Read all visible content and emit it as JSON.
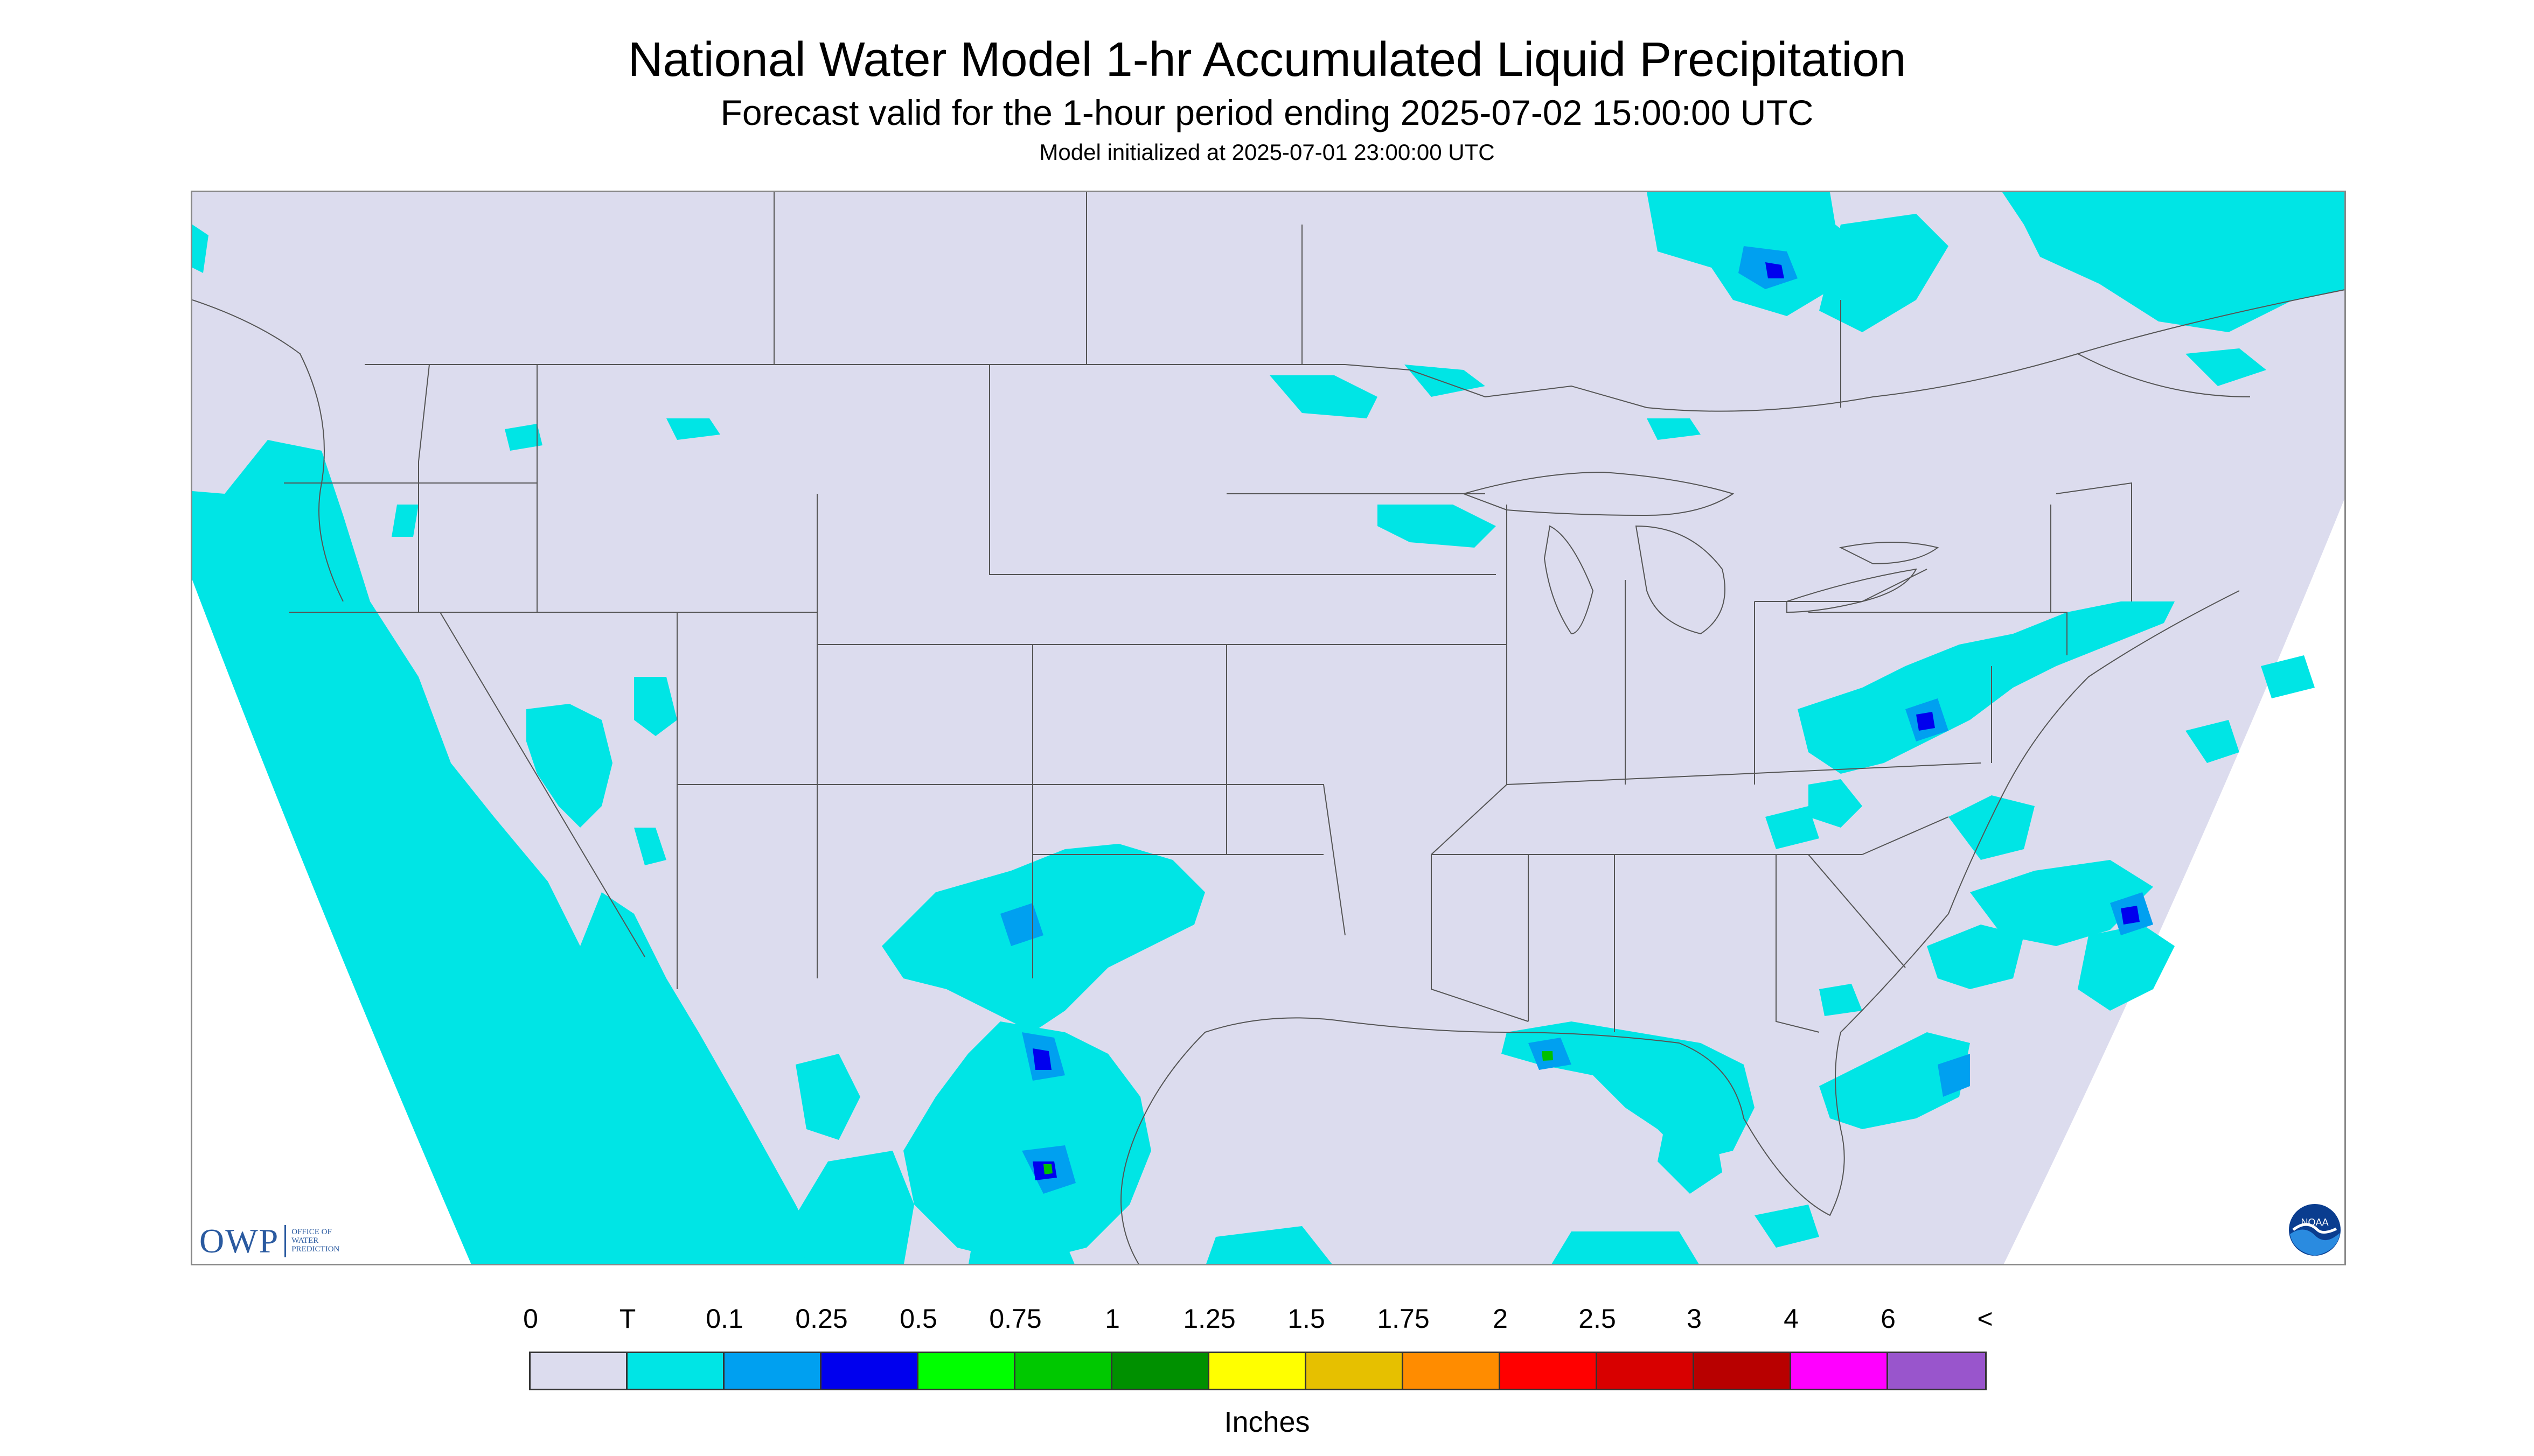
{
  "header": {
    "title": "National Water Model 1-hr Accumulated Liquid Precipitation",
    "subtitle": "Forecast valid for the 1-hour period ending 2025-07-02 15:00:00 UTC",
    "init_line": "Model initialized at 2025-07-01 23:00:00 UTC"
  },
  "map": {
    "background_color": "#dcdcee",
    "outside_color": "#ffffff",
    "state_line_color": "#555555",
    "precip_trace_color": "#00e5e5",
    "precip_light_color": "#00a0f0",
    "precip_moderate_color": "#0000ee",
    "precip_heavy_color": "#00c000"
  },
  "logos": {
    "owp_text": "OWP",
    "owp_small_1": "OFFICE OF",
    "owp_small_2": "WATER",
    "owp_small_3": "PREDICTION",
    "noaa_text": "NOAA"
  },
  "legend": {
    "labels": [
      "0",
      "T",
      "0.1",
      "0.25",
      "0.5",
      "0.75",
      "1",
      "1.25",
      "1.5",
      "1.75",
      "2",
      "2.5",
      "3",
      "4",
      "6",
      "<"
    ],
    "colors": [
      "#dcdcee",
      "#00e5e5",
      "#00a0f0",
      "#0000ee",
      "#00ff00",
      "#00c800",
      "#009000",
      "#ffff00",
      "#e6c000",
      "#ff8c00",
      "#ff0000",
      "#d80000",
      "#b80000",
      "#ff00ff",
      "#9955cc"
    ],
    "units": "Inches"
  }
}
